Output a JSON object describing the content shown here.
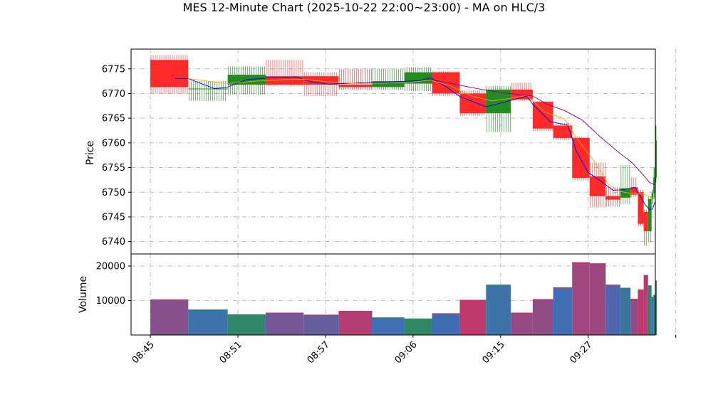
{
  "chart_data": {
    "type": "candlestick",
    "title": "MES 12-Minute Chart (2025-10-22 22:00~23:00) - MA on HLC/3",
    "price_panel": {
      "ylabel": "Price",
      "ylim": [
        6737.5,
        6779
      ],
      "yticks": [
        6740,
        6745,
        6750,
        6755,
        6760,
        6765,
        6770,
        6775
      ],
      "grid": true
    },
    "volume_panel": {
      "ylabel": "Volume",
      "ylim": [
        0,
        23500
      ],
      "yticks": [
        10000,
        20000
      ],
      "ytick_labels": [
        "10000",
        "20000"
      ],
      "grid": true
    },
    "xlim": [
      -0.66,
      17.3
    ],
    "xticks": [
      {
        "x": 0,
        "label": "08:45"
      },
      {
        "x": 3,
        "label": "08:51"
      },
      {
        "x": 6,
        "label": "08:57"
      },
      {
        "x": 9,
        "label": "09:06"
      },
      {
        "x": 12,
        "label": "09:15"
      },
      {
        "x": 15,
        "label": "09:27"
      },
      {
        "x": 18,
        "label": ""
      }
    ],
    "candles": [
      {
        "x": 0,
        "w": 1.3,
        "open": 6776.8,
        "high": 6777.8,
        "low": 6770.0,
        "close": 6771.3,
        "volume": 10200
      },
      {
        "x": 1.3,
        "w": 1.35,
        "open": 6771.0,
        "high": 6772.5,
        "low": 6768.5,
        "close": 6771.0,
        "volume": 7300
      },
      {
        "x": 2.65,
        "w": 1.3,
        "open": 6771.8,
        "high": 6775.5,
        "low": 6769.8,
        "close": 6773.8,
        "volume": 5900
      },
      {
        "x": 3.95,
        "w": 1.3,
        "open": 6773.5,
        "high": 6776.8,
        "low": 6771.5,
        "close": 6771.8,
        "volume": 6400
      },
      {
        "x": 5.25,
        "w": 1.2,
        "open": 6773.5,
        "high": 6774.3,
        "low": 6769.5,
        "close": 6771.8,
        "volume": 5800
      },
      {
        "x": 6.45,
        "w": 1.15,
        "open": 6771.8,
        "high": 6775.0,
        "low": 6770.7,
        "close": 6771.3,
        "volume": 6900
      },
      {
        "x": 7.6,
        "w": 1.1,
        "open": 6771.3,
        "high": 6775.0,
        "low": 6770.7,
        "close": 6772.5,
        "volume": 5000
      },
      {
        "x": 8.7,
        "w": 0.95,
        "open": 6772.0,
        "high": 6775.3,
        "low": 6770.5,
        "close": 6774.3,
        "volume": 4700
      },
      {
        "x": 9.65,
        "w": 0.95,
        "open": 6774.3,
        "high": 6774.5,
        "low": 6769.5,
        "close": 6770.0,
        "volume": 6200
      },
      {
        "x": 10.6,
        "w": 0.9,
        "open": 6770.0,
        "high": 6770.6,
        "low": 6765.5,
        "close": 6766.0,
        "volume": 10100
      },
      {
        "x": 11.5,
        "w": 0.85,
        "open": 6766.0,
        "high": 6771.5,
        "low": 6762.2,
        "close": 6770.8,
        "volume": 14500
      },
      {
        "x": 12.35,
        "w": 0.75,
        "open": 6770.8,
        "high": 6772.2,
        "low": 6768.5,
        "close": 6768.8,
        "volume": 6400
      },
      {
        "x": 13.1,
        "w": 0.7,
        "open": 6768.3,
        "high": 6768.5,
        "low": 6762.4,
        "close": 6762.9,
        "volume": 10300
      },
      {
        "x": 13.8,
        "w": 0.65,
        "open": 6763.5,
        "high": 6764.0,
        "low": 6760.6,
        "close": 6761.0,
        "volume": 13700
      },
      {
        "x": 14.45,
        "w": 0.6,
        "open": 6761.0,
        "high": 6761.3,
        "low": 6752.4,
        "close": 6752.9,
        "volume": 21000
      },
      {
        "x": 15.05,
        "w": 0.55,
        "open": 6753.2,
        "high": 6756.0,
        "low": 6746.9,
        "close": 6749.2,
        "volume": 20700
      },
      {
        "x": 15.6,
        "w": 0.5,
        "open": 6749.2,
        "high": 6751.0,
        "low": 6747.1,
        "close": 6748.5,
        "volume": 14500
      },
      {
        "x": 16.1,
        "w": 0.35,
        "open": 6748.9,
        "high": 6755.5,
        "low": 6747.6,
        "close": 6750.8,
        "volume": 13600
      },
      {
        "x": 16.45,
        "w": 0.25,
        "open": 6751.0,
        "high": 6753.0,
        "low": 6749.0,
        "close": 6749.5,
        "volume": 10400
      },
      {
        "x": 16.7,
        "w": 0.2,
        "open": 6750.0,
        "high": 6750.5,
        "low": 6743.1,
        "close": 6743.6,
        "volume": 13100
      },
      {
        "x": 16.9,
        "w": 0.15,
        "open": 6746.0,
        "high": 6746.5,
        "low": 6739.2,
        "close": 6742.1,
        "volume": 17300
      },
      {
        "x": 17.05,
        "w": 0.12,
        "open": 6742.1,
        "high": 6749.2,
        "low": 6739.8,
        "close": 6748.6,
        "volume": 14300
      },
      {
        "x": 17.17,
        "w": 0.06,
        "open": 6748.6,
        "high": 6750.5,
        "low": 6747.6,
        "close": 6749.8,
        "volume": 11000
      },
      {
        "x": 17.23,
        "w": 0.06,
        "open": 6749.8,
        "high": 6755.0,
        "low": 6748.8,
        "close": 6753.0,
        "volume": 11500
      },
      {
        "x": 17.29,
        "w": 0.06,
        "open": 6753.0,
        "high": 6763.5,
        "low": 6752.0,
        "close": 6760.5,
        "volume": 15700
      }
    ],
    "moving_averages": [
      {
        "color": "#0000ff",
        "points": [
          [
            0.85,
            6773.0
          ],
          [
            1.3,
            6773.0
          ],
          [
            2.2,
            6771.0
          ],
          [
            2.6,
            6771.2
          ],
          [
            3.3,
            6772.8
          ],
          [
            4.1,
            6773.2
          ],
          [
            5.0,
            6773.4
          ],
          [
            5.5,
            6772.4
          ],
          [
            6.1,
            6771.9
          ],
          [
            6.9,
            6772.1
          ],
          [
            8.0,
            6772.3
          ],
          [
            9.2,
            6772.6
          ],
          [
            9.6,
            6773.2
          ],
          [
            10.1,
            6771.5
          ],
          [
            10.6,
            6769.4
          ],
          [
            11.5,
            6767.3
          ],
          [
            12.1,
            6768.2
          ],
          [
            12.9,
            6769.5
          ],
          [
            13.1,
            6767.8
          ],
          [
            13.7,
            6764.3
          ],
          [
            14.3,
            6763.6
          ],
          [
            14.6,
            6758.2
          ],
          [
            15.0,
            6754.0
          ],
          [
            15.45,
            6752.2
          ],
          [
            15.85,
            6750.4
          ],
          [
            16.2,
            6750.5
          ],
          [
            16.6,
            6751.0
          ],
          [
            16.95,
            6747.5
          ],
          [
            17.1,
            6746.5
          ],
          [
            17.2,
            6746.6
          ],
          [
            17.3,
            6748.2
          ]
        ]
      },
      {
        "color": "#ffa500",
        "points": [
          [
            1.3,
            6773.0
          ],
          [
            2.6,
            6772.0
          ],
          [
            3.6,
            6772.5
          ],
          [
            4.6,
            6772.8
          ],
          [
            5.2,
            6772.9
          ],
          [
            6.0,
            6772.4
          ],
          [
            7.2,
            6772.0
          ],
          [
            8.8,
            6772.2
          ],
          [
            9.6,
            6772.7
          ],
          [
            10.3,
            6771.5
          ],
          [
            11.0,
            6769.5
          ],
          [
            11.7,
            6768.5
          ],
          [
            12.3,
            6769.0
          ],
          [
            12.9,
            6769.6
          ],
          [
            13.5,
            6766.3
          ],
          [
            14.2,
            6764.8
          ],
          [
            14.6,
            6761.0
          ],
          [
            15.2,
            6756.3
          ],
          [
            15.7,
            6751.5
          ],
          [
            16.1,
            6750.2
          ],
          [
            16.4,
            6749.8
          ],
          [
            16.9,
            6749.6
          ],
          [
            17.3,
            6748.6
          ]
        ]
      },
      {
        "color": "#800080",
        "points": [
          [
            9.4,
            6773.0
          ],
          [
            10.1,
            6772.3
          ],
          [
            11.0,
            6771.2
          ],
          [
            11.9,
            6770.3
          ],
          [
            12.6,
            6769.8
          ],
          [
            13.1,
            6769.5
          ],
          [
            13.6,
            6767.8
          ],
          [
            14.2,
            6766.5
          ],
          [
            14.8,
            6764.6
          ],
          [
            15.4,
            6761.3
          ],
          [
            16.0,
            6758.3
          ],
          [
            16.5,
            6756.0
          ],
          [
            16.9,
            6753.4
          ],
          [
            17.1,
            6752.0
          ],
          [
            17.3,
            6751.4
          ]
        ]
      }
    ],
    "colors": {
      "up": "#228b22",
      "down": "#ff2a2a",
      "volume_bar": "#3f6fb5",
      "volume_edge_down": "#d03060",
      "volume_edge_up": "#2e8b57",
      "grid": "#b0b0b0"
    }
  }
}
